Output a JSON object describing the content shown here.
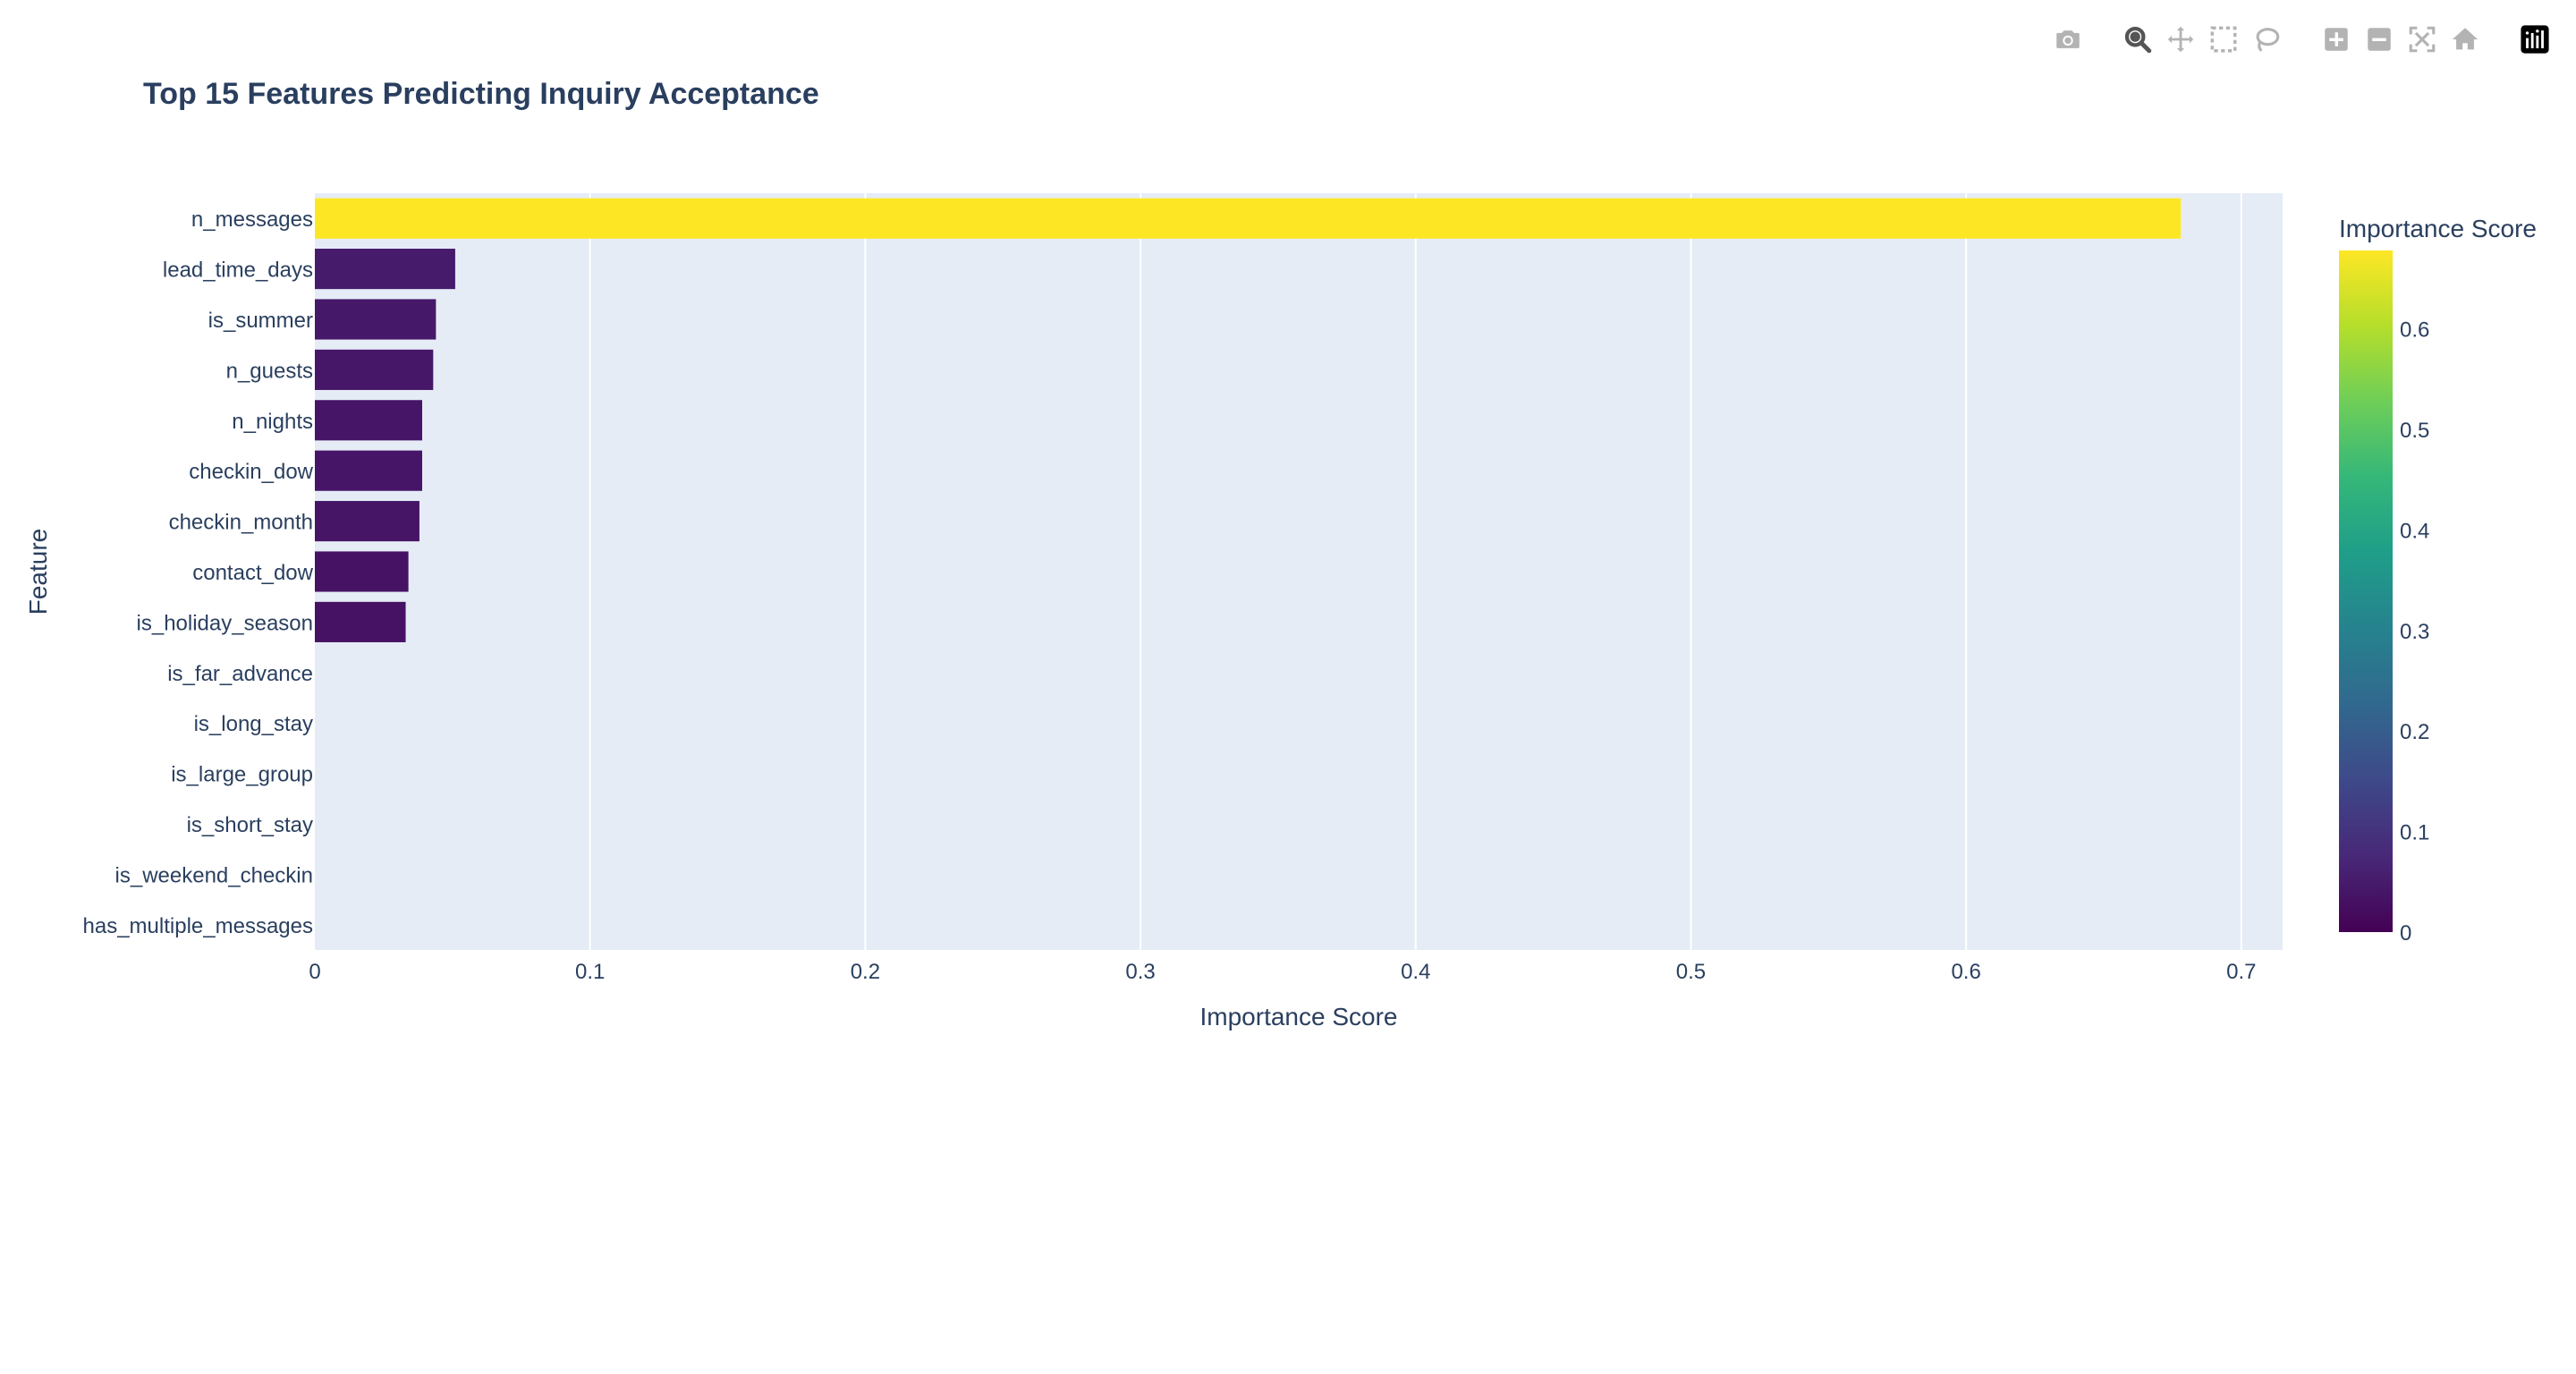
{
  "chart_data": {
    "type": "bar",
    "orientation": "horizontal",
    "title": "Top 15 Features Predicting Inquiry Acceptance",
    "xlabel": "Importance Score",
    "ylabel": "Feature",
    "xlim": [
      0,
      0.715
    ],
    "xticks": [
      0,
      0.1,
      0.2,
      0.3,
      0.4,
      0.5,
      0.6,
      0.7
    ],
    "xtick_labels": [
      "0",
      "0.1",
      "0.2",
      "0.3",
      "0.4",
      "0.5",
      "0.6",
      "0.7"
    ],
    "categories": [
      "n_messages",
      "lead_time_days",
      "is_summer",
      "n_guests",
      "n_nights",
      "checkin_dow",
      "checkin_month",
      "contact_dow",
      "is_holiday_season",
      "is_far_advance",
      "is_long_stay",
      "is_large_group",
      "is_short_stay",
      "is_weekend_checkin",
      "has_multiple_messages"
    ],
    "values": [
      0.678,
      0.051,
      0.044,
      0.043,
      0.039,
      0.039,
      0.038,
      0.034,
      0.033,
      0,
      0,
      0,
      0,
      0,
      0
    ],
    "colorscale": "Viridis",
    "colorbar": {
      "title": "Importance Score",
      "range": [
        0,
        0.678
      ],
      "ticks": [
        0,
        0.1,
        0.2,
        0.3,
        0.4,
        0.5,
        0.6
      ],
      "tick_labels": [
        "0",
        "0.1",
        "0.2",
        "0.3",
        "0.4",
        "0.5",
        "0.6"
      ]
    },
    "grid": true,
    "plot_bgcolor": "#e5ecf6"
  },
  "modebar": {
    "buttons": [
      {
        "name": "camera-icon",
        "group": 0
      },
      {
        "name": "zoom-icon",
        "group": 1
      },
      {
        "name": "pan-icon",
        "group": 1
      },
      {
        "name": "box-select-icon",
        "group": 1
      },
      {
        "name": "lasso-select-icon",
        "group": 1
      },
      {
        "name": "zoom-in-icon",
        "group": 2
      },
      {
        "name": "zoom-out-icon",
        "group": 2
      },
      {
        "name": "autoscale-icon",
        "group": 2
      },
      {
        "name": "reset-axes-icon",
        "group": 2
      },
      {
        "name": "plotly-logo-icon",
        "group": 3
      }
    ]
  }
}
